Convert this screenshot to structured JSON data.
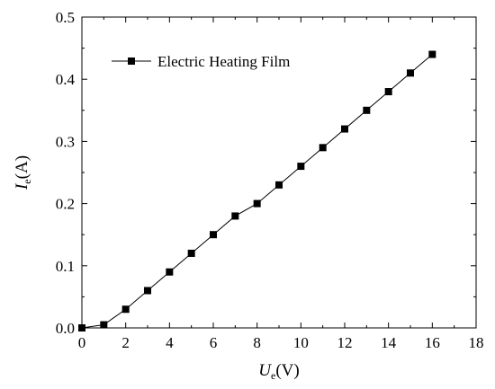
{
  "chart_data": {
    "type": "line",
    "title": "",
    "xlabel": {
      "main": "U",
      "sub": "e",
      "unit": "(V)"
    },
    "ylabel": {
      "main": "I",
      "sub": "e",
      "unit": "(A)"
    },
    "xlim": [
      0,
      18
    ],
    "ylim": [
      0,
      0.5
    ],
    "xticks": [
      0,
      2,
      4,
      6,
      8,
      10,
      12,
      14,
      16,
      18
    ],
    "yticks": [
      0.0,
      0.1,
      0.2,
      0.3,
      0.4,
      0.5
    ],
    "xtick_labels": [
      "0",
      "2",
      "4",
      "6",
      "8",
      "10",
      "12",
      "14",
      "16",
      "18"
    ],
    "ytick_labels": [
      "0.0",
      "0.1",
      "0.2",
      "0.3",
      "0.4",
      "0.5"
    ],
    "grid": false,
    "legend_position": "top-left",
    "series": [
      {
        "name": "Electric Heating Film",
        "marker": "square",
        "color": "#000000",
        "x": [
          0,
          1,
          2,
          3,
          4,
          5,
          6,
          7,
          8,
          9,
          10,
          11,
          12,
          13,
          14,
          15,
          16
        ],
        "y": [
          0.0,
          0.005,
          0.03,
          0.06,
          0.09,
          0.12,
          0.15,
          0.18,
          0.2,
          0.23,
          0.26,
          0.29,
          0.32,
          0.35,
          0.38,
          0.41,
          0.44
        ]
      }
    ]
  }
}
